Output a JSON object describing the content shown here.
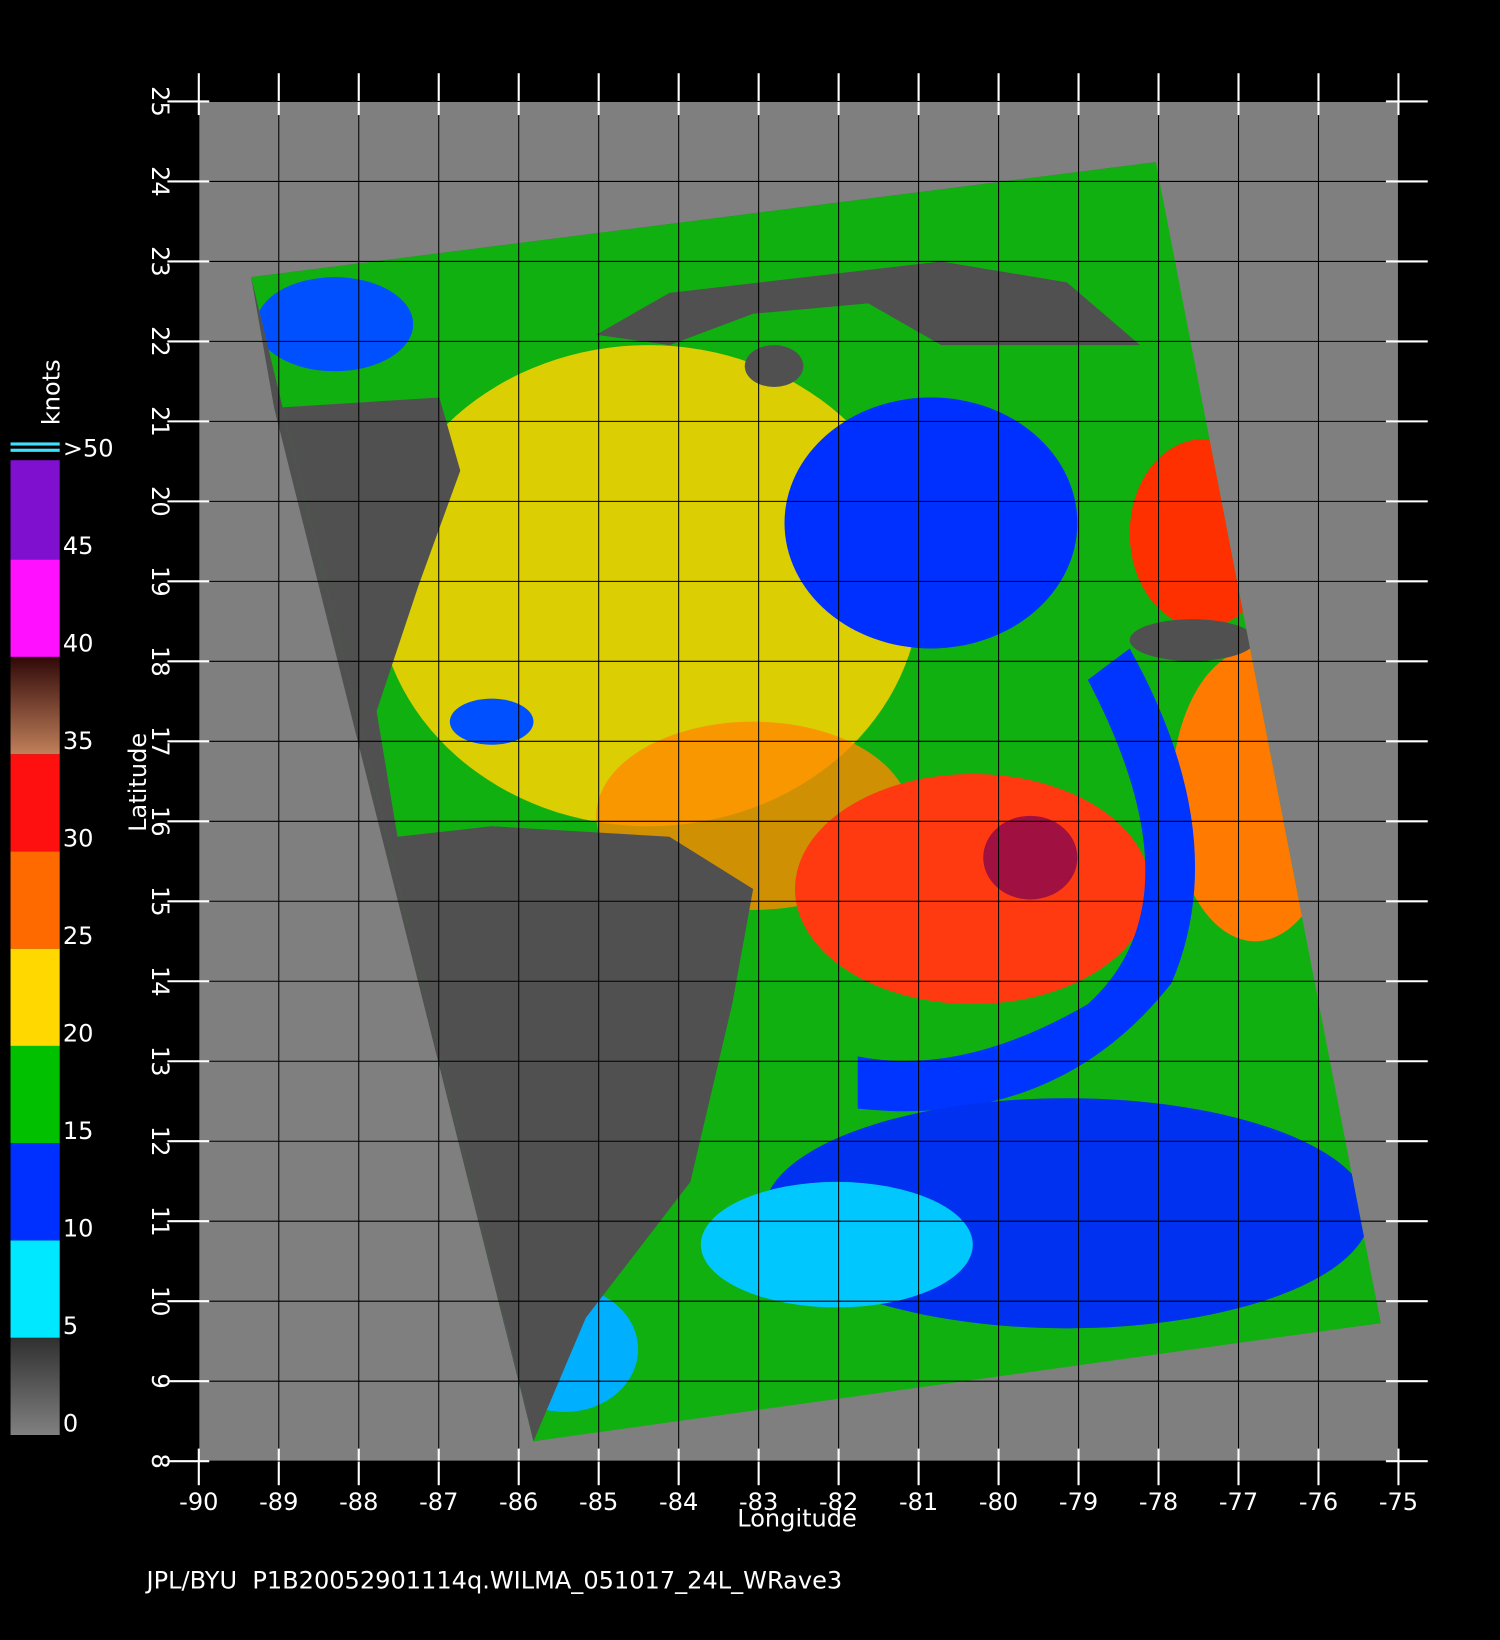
{
  "map": {
    "xlim": [
      -90,
      -75
    ],
    "ylim": [
      8,
      25
    ],
    "xticks": [
      -90,
      -89,
      -88,
      -87,
      -86,
      -85,
      -84,
      -83,
      -82,
      -81,
      -80,
      -79,
      -78,
      -77,
      -76,
      -75
    ],
    "yticks": [
      8,
      9,
      10,
      11,
      12,
      13,
      14,
      15,
      16,
      17,
      18,
      19,
      20,
      21,
      22,
      23,
      24,
      25
    ],
    "xlabel": "Longitude",
    "ylabel": "Latitude",
    "colorbar": {
      "label": "knots",
      "lim": [
        0,
        50
      ],
      "ticks": [
        0,
        5,
        10,
        15,
        20,
        25,
        30,
        35,
        40,
        45,
        {
          "value": 50,
          "label": ">50"
        }
      ]
    },
    "footer": "JPL/BYU  P1B20052901114q.WILMA_051017_24L_WRave3"
  }
}
